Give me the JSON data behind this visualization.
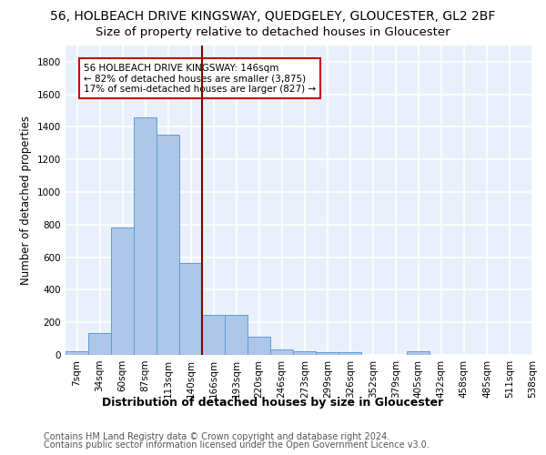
{
  "title1": "56, HOLBEACH DRIVE KINGSWAY, QUEDGELEY, GLOUCESTER, GL2 2BF",
  "title2": "Size of property relative to detached houses in Gloucester",
  "xlabel": "Distribution of detached houses by size in Gloucester",
  "ylabel": "Number of detached properties",
  "bin_labels": [
    "7sqm",
    "34sqm",
    "60sqm",
    "87sqm",
    "113sqm",
    "140sqm",
    "166sqm",
    "193sqm",
    "220sqm",
    "246sqm",
    "273sqm",
    "299sqm",
    "326sqm",
    "352sqm",
    "379sqm",
    "405sqm",
    "432sqm",
    "458sqm",
    "485sqm",
    "511sqm",
    "538sqm"
  ],
  "bar_values": [
    20,
    135,
    780,
    1460,
    1350,
    565,
    245,
    245,
    112,
    35,
    25,
    18,
    18,
    0,
    0,
    22,
    0,
    0,
    0,
    0
  ],
  "bar_color": "#aec6e8",
  "bar_edge_color": "#5a9fd4",
  "annotation_text": "56 HOLBEACH DRIVE KINGSWAY: 146sqm\n← 82% of detached houses are smaller (3,875)\n17% of semi-detached houses are larger (827) →",
  "annotation_box_color": "#ffffff",
  "annotation_box_edge": "#cc0000",
  "vline_color": "#8b0000",
  "ylim": [
    0,
    1900
  ],
  "yticks": [
    0,
    200,
    400,
    600,
    800,
    1000,
    1200,
    1400,
    1600,
    1800
  ],
  "footer1": "Contains HM Land Registry data © Crown copyright and database right 2024.",
  "footer2": "Contains public sector information licensed under the Open Government Licence v3.0.",
  "bg_color": "#eaf0fb",
  "grid_color": "#ffffff",
  "title1_fontsize": 10,
  "title2_fontsize": 9.5,
  "xlabel_fontsize": 9,
  "ylabel_fontsize": 8.5,
  "tick_fontsize": 7.5,
  "annotation_fontsize": 7.5,
  "footer_fontsize": 7
}
